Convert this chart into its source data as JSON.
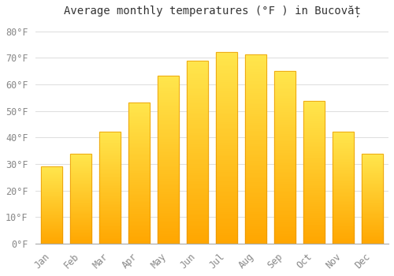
{
  "title": "Average monthly temperatures (°F ) in Bucovăț",
  "months": [
    "Jan",
    "Feb",
    "Mar",
    "Apr",
    "May",
    "Jun",
    "Jul",
    "Aug",
    "Sep",
    "Oct",
    "Nov",
    "Dec"
  ],
  "values": [
    29.0,
    33.8,
    42.1,
    53.2,
    63.3,
    68.9,
    72.1,
    71.4,
    65.0,
    53.8,
    42.2,
    33.8
  ],
  "bar_color_top": "#FFD966",
  "bar_color_bottom": "#FFA500",
  "bar_edge_color": "#E89400",
  "background_color": "#FFFFFF",
  "grid_color": "#E0E0E0",
  "ylim": [
    0,
    84
  ],
  "yticks": [
    0,
    10,
    20,
    30,
    40,
    50,
    60,
    70,
    80
  ],
  "title_fontsize": 10,
  "tick_fontsize": 8.5,
  "tick_color": "#888888"
}
